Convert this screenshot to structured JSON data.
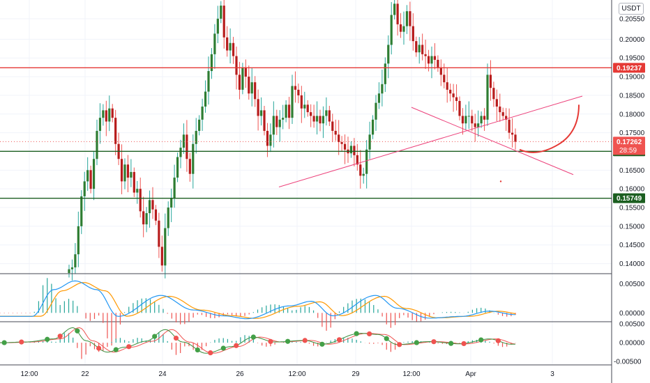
{
  "currency": "USDT",
  "colors": {
    "up": "#26a69a",
    "down": "#ef5350",
    "candle_body_up": "#2e7d32",
    "candle_body_down": "#b71c1c",
    "resistance": "#e53935",
    "support": "#1b5e20",
    "trendline": "#ec407a",
    "projection": "#e53935",
    "grid": "#f0f3fa",
    "macd": "#2196f3",
    "signal": "#ff9800"
  },
  "chart_data": [
    {
      "type": "candlestick",
      "y_ticks": [
        "0.20550",
        "0.20000",
        "0.19500",
        "0.19000",
        "0.18500",
        "0.18000",
        "0.17500",
        "0.17000",
        "0.16500",
        "0.16000",
        "0.15500",
        "0.15000",
        "0.14500",
        "0.14000"
      ],
      "ylim": [
        0.1375,
        0.2105
      ],
      "x_ticks": [
        "12:00",
        "22",
        "24",
        "26",
        "12:00",
        "29",
        "12:00",
        "Apr",
        "3"
      ],
      "horizontal_levels": [
        {
          "price": 0.19237,
          "label": "0.19237",
          "color": "resistance"
        },
        {
          "price": 0.17004,
          "label": "0.17004",
          "color": "support"
        },
        {
          "price": 0.15749,
          "label": "0.15749",
          "color": "support"
        }
      ],
      "current_price": {
        "price": 0.17262,
        "label": "0.17262",
        "countdown": "28:59"
      },
      "closes": [
        0.1385,
        0.139,
        0.1425,
        0.15,
        0.158,
        0.162,
        0.165,
        0.16,
        0.168,
        0.1755,
        0.179,
        0.181,
        0.178,
        0.1815,
        0.179,
        0.172,
        0.168,
        0.162,
        0.1665,
        0.163,
        0.1645,
        0.159,
        0.16,
        0.154,
        0.1505,
        0.1535,
        0.157,
        0.1545,
        0.1515,
        0.1445,
        0.1395,
        0.1495,
        0.155,
        0.1575,
        0.163,
        0.1685,
        0.171,
        0.1745,
        0.168,
        0.164,
        0.172,
        0.1755,
        0.1785,
        0.182,
        0.186,
        0.1915,
        0.196,
        0.2015,
        0.2055,
        0.209,
        0.2005,
        0.197,
        0.199,
        0.1955,
        0.1905,
        0.1865,
        0.1925,
        0.19,
        0.1855,
        0.1885,
        0.184,
        0.1795,
        0.181,
        0.1755,
        0.1715,
        0.1745,
        0.1795,
        0.1765,
        0.1785,
        0.179,
        0.1825,
        0.179,
        0.1875,
        0.1865,
        0.185,
        0.1815,
        0.1825,
        0.1805,
        0.1795,
        0.178,
        0.1795,
        0.1775,
        0.1795,
        0.181,
        0.178,
        0.1755,
        0.1745,
        0.1725,
        0.172,
        0.1705,
        0.1695,
        0.1715,
        0.169,
        0.1665,
        0.1635,
        0.164,
        0.1705,
        0.1745,
        0.1785,
        0.183,
        0.1855,
        0.188,
        0.1935,
        0.1985,
        0.2065,
        0.2095,
        0.204,
        0.202,
        0.2035,
        0.2075,
        0.2035,
        0.1995,
        0.1965,
        0.1985,
        0.196,
        0.1955,
        0.1935,
        0.1955,
        0.1945,
        0.1925,
        0.1905,
        0.1885,
        0.1865,
        0.1855,
        0.1845,
        0.1835,
        0.1795,
        0.1775,
        0.1795,
        0.1795,
        0.1775,
        0.1765,
        0.1775,
        0.1795,
        0.1785,
        0.1905,
        0.187,
        0.184,
        0.182,
        0.1805,
        0.1795,
        0.1785,
        0.175,
        0.1745,
        0.1726
      ]
    },
    {
      "type": "bar",
      "name": "MACD",
      "y_ticks": [
        "0.00500",
        "0.00000"
      ],
      "ylim": [
        -0.0014,
        0.0065
      ],
      "macd_peaks": [
        [
          0,
          -0.0006
        ],
        [
          15,
          -0.0006
        ],
        [
          25,
          0.004
        ],
        [
          35,
          0.0055
        ],
        [
          45,
          0.004
        ],
        [
          55,
          -0.0006
        ],
        [
          75,
          0.003
        ],
        [
          90,
          0.0005
        ],
        [
          104,
          -0.0005
        ],
        [
          115,
          -0.001
        ],
        [
          135,
          0.0012
        ],
        [
          145,
          0.002
        ],
        [
          155,
          -0.0005
        ],
        [
          175,
          0.003
        ],
        [
          185,
          0.0008
        ],
        [
          200,
          -0.0009
        ],
        [
          215,
          -0.0006
        ],
        [
          228,
          0.0003
        ],
        [
          240,
          -0.0003
        ]
      ]
    },
    {
      "type": "bar",
      "name": "Oscillator",
      "y_ticks": [
        "0.00500",
        "0.00000",
        "-0.00500"
      ],
      "ylim": [
        -0.0057,
        0.0052
      ],
      "osc_peaks": [
        [
          0,
          0
        ],
        [
          12,
          0.0002
        ],
        [
          25,
          0.001
        ],
        [
          34,
          0.004
        ],
        [
          40,
          0.0005
        ],
        [
          50,
          -0.0025
        ],
        [
          58,
          -0.0012
        ],
        [
          68,
          0.0004
        ],
        [
          77,
          0.0035
        ],
        [
          85,
          0.0002
        ],
        [
          96,
          -0.0028
        ],
        [
          108,
          -0.001
        ],
        [
          118,
          0.0015
        ],
        [
          128,
          0.0002
        ],
        [
          142,
          0.0006
        ],
        [
          150,
          -0.0004
        ],
        [
          168,
          0.0025
        ],
        [
          176,
          0.0022
        ],
        [
          185,
          -0.0005
        ],
        [
          200,
          0.0003
        ],
        [
          214,
          -0.0003
        ],
        [
          228,
          0.001
        ],
        [
          238,
          -0.0004
        ]
      ],
      "dot_positions": [
        2,
        10,
        22,
        28,
        36,
        46,
        54,
        60,
        72,
        82,
        92,
        98,
        104,
        110,
        118,
        126,
        134,
        142,
        150,
        158,
        166,
        172,
        180,
        186,
        194,
        202,
        210,
        216,
        224,
        232
      ]
    }
  ]
}
